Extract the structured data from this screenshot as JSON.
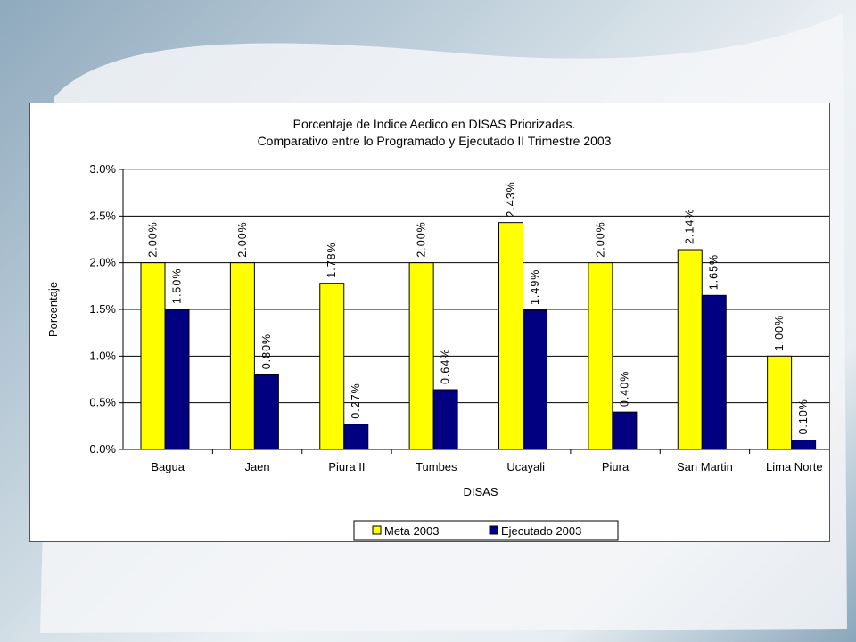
{
  "chart_data": {
    "type": "bar",
    "title": "Porcentaje de Indice Aedico en DISAS Priorizadas.",
    "subtitle": "Comparativo entre lo Programado y Ejecutado II Trimestre 2003",
    "xlabel": "DISAS",
    "ylabel": "Porcentaje",
    "ylim": [
      0,
      3.0
    ],
    "yticks": [
      "0.0%",
      "0.5%",
      "1.0%",
      "1.5%",
      "2.0%",
      "2.5%",
      "3.0%"
    ],
    "ytick_values": [
      0,
      0.5,
      1.0,
      1.5,
      2.0,
      2.5,
      3.0
    ],
    "grid": true,
    "legend_position": "bottom",
    "categories": [
      "Bagua",
      "Jaen",
      "Piura II",
      "Tumbes",
      "Ucayali",
      "Piura",
      "San Martin",
      "Lima Norte"
    ],
    "series": [
      {
        "name": "Meta 2003",
        "color": "#ffff00",
        "values": [
          2.0,
          2.0,
          1.78,
          2.0,
          2.43,
          2.0,
          2.14,
          1.0
        ],
        "labels": [
          "2.00%",
          "2.00%",
          "1.78%",
          "2.00%",
          "2.43%",
          "2.00%",
          "2.14%",
          "1.00%"
        ]
      },
      {
        "name": "Ejecutado 2003",
        "color": "#000080",
        "values": [
          1.5,
          0.8,
          0.27,
          0.64,
          1.49,
          0.4,
          1.65,
          0.1
        ],
        "labels": [
          "1.50%",
          "0.80%",
          "0.27%",
          "0.64%",
          "1.49%",
          "0.40%",
          "1.65%",
          "0.10%"
        ]
      }
    ]
  }
}
